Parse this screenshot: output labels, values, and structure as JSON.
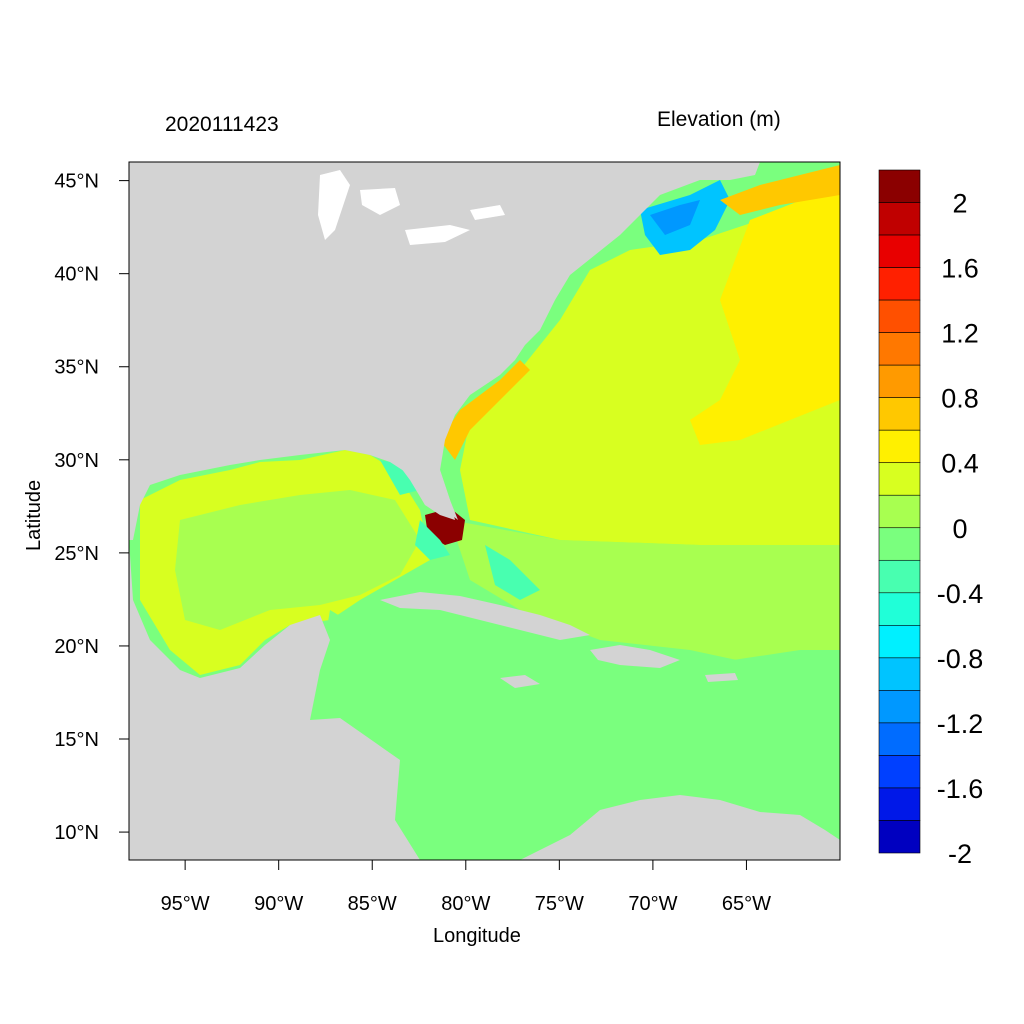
{
  "header": {
    "date_label": "2020111423",
    "variable_label": "Elevation (m)"
  },
  "axes": {
    "xlabel": "Longitude",
    "ylabel": "Latitude",
    "x_ticks": [
      "95°W",
      "90°W",
      "85°W",
      "80°W",
      "75°W",
      "70°W",
      "65°W"
    ],
    "x_tick_values": [
      -95,
      -90,
      -85,
      -80,
      -75,
      -70,
      -65
    ],
    "y_ticks": [
      "45°N",
      "40°N",
      "35°N",
      "30°N",
      "25°N",
      "20°N",
      "15°N",
      "10°N"
    ],
    "y_tick_values": [
      45,
      40,
      35,
      30,
      25,
      20,
      15,
      10
    ],
    "xlim": [
      -98,
      -60
    ],
    "ylim": [
      8.5,
      46
    ]
  },
  "colorbar": {
    "label_text": [
      "2",
      "1.6",
      "1.2",
      "0.8",
      "0.4",
      "0",
      "-0.4",
      "-0.8",
      "-1.2",
      "-1.6",
      "-2"
    ],
    "colors_top_to_bottom": [
      "#8b0000",
      "#c00000",
      "#e80000",
      "#ff2000",
      "#ff5000",
      "#ff7800",
      "#ff9a00",
      "#ffc800",
      "#fff000",
      "#d8ff20",
      "#a8ff50",
      "#7aff7e",
      "#48ffb0",
      "#20ffd8",
      "#00f0ff",
      "#00c4ff",
      "#0098ff",
      "#006cff",
      "#0040ff",
      "#0018e8",
      "#0000c0"
    ]
  },
  "map_colors": {
    "land": "#d3d3d3",
    "lakes": "#ffffff"
  }
}
